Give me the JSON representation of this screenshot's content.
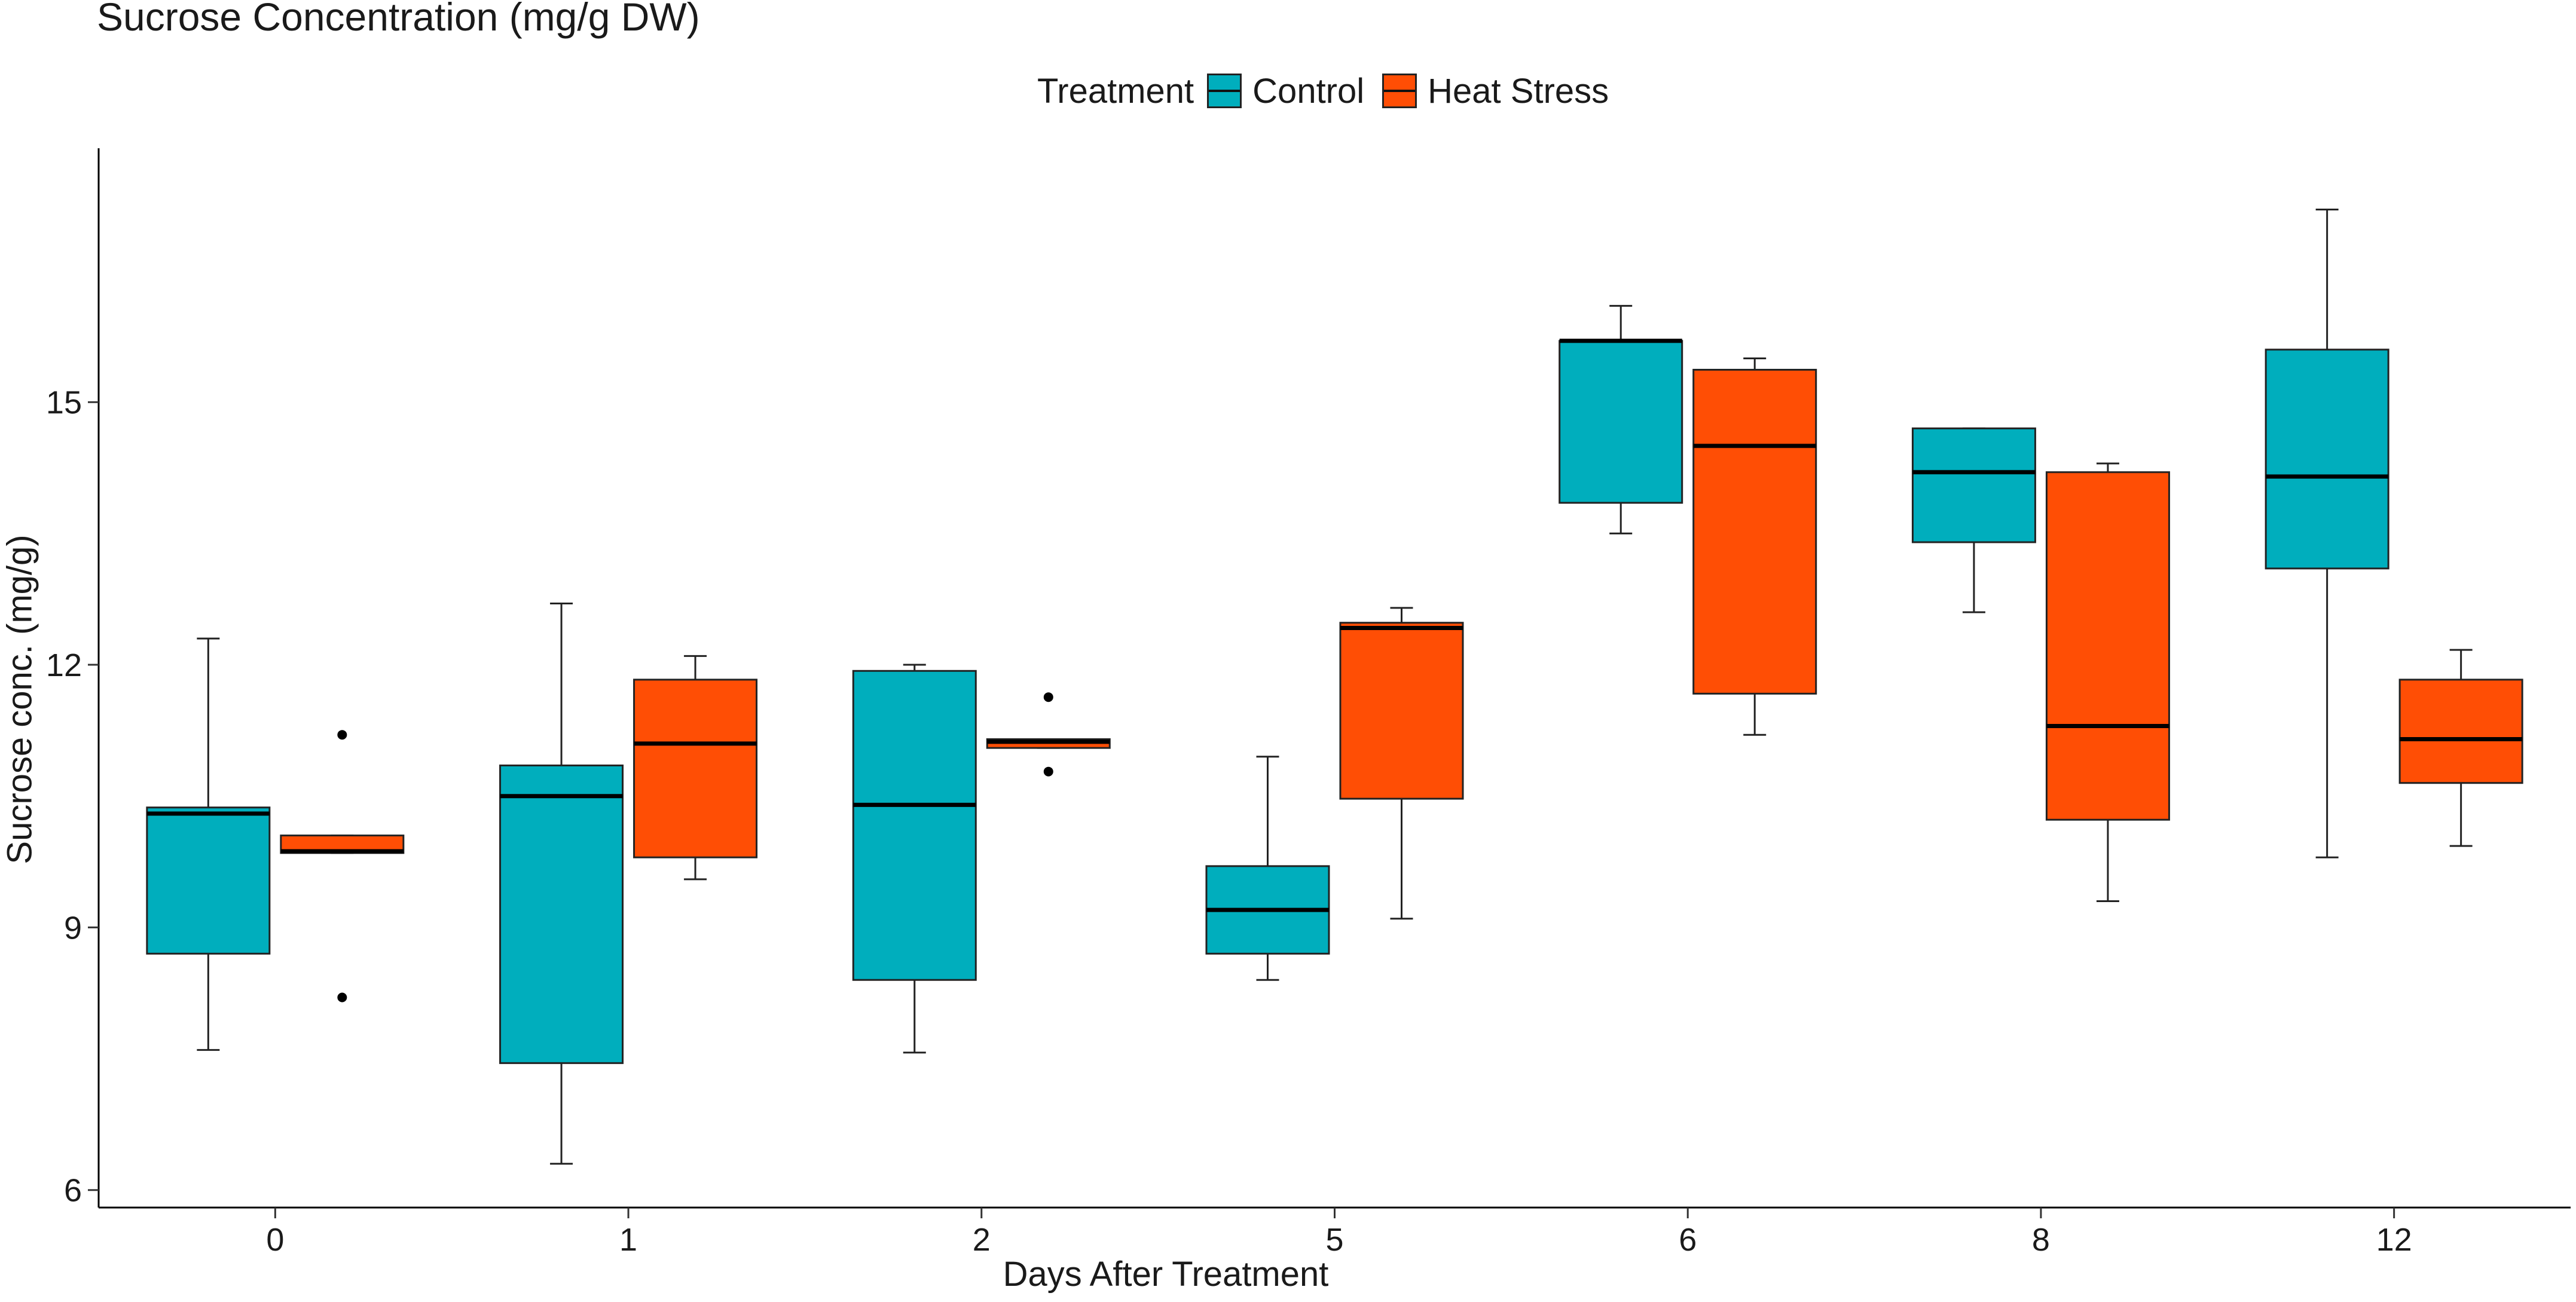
{
  "chart_data": {
    "type": "box",
    "title": "Sucrose Concentration (mg/g DW)",
    "xlabel": "Days After Treatment",
    "ylabel": "Sucrose conc. (mg/g)",
    "categories": [
      "0",
      "1",
      "2",
      "5",
      "6",
      "8",
      "12"
    ],
    "ylim": [
      5.8,
      17.9
    ],
    "yticks": [
      6,
      9,
      12,
      15
    ],
    "ytick_labels": [
      "6",
      "9",
      "12",
      "15"
    ],
    "grid": false,
    "legend": {
      "title": "Treatment",
      "position": "top",
      "entries": [
        {
          "name": "Control",
          "color": "#00AEBD"
        },
        {
          "name": "Heat Stress",
          "color": "#FF4E05"
        }
      ]
    },
    "series": [
      {
        "name": "Control",
        "color": "#00AEBD",
        "boxes": [
          {
            "min": 7.6,
            "q1": 8.7,
            "median": 10.3,
            "q3": 10.37,
            "max": 12.3,
            "outliers": []
          },
          {
            "min": 6.3,
            "q1": 7.45,
            "median": 10.5,
            "q3": 10.85,
            "max": 12.7,
            "outliers": []
          },
          {
            "min": 7.57,
            "q1": 8.4,
            "median": 10.4,
            "q3": 11.93,
            "max": 12.0,
            "outliers": []
          },
          {
            "min": 8.4,
            "q1": 8.7,
            "median": 9.2,
            "q3": 9.7,
            "max": 10.95,
            "outliers": []
          },
          {
            "min": 13.5,
            "q1": 13.85,
            "median": 15.7,
            "q3": 15.7,
            "max": 16.1,
            "outliers": []
          },
          {
            "min": 12.6,
            "q1": 13.4,
            "median": 14.2,
            "q3": 14.7,
            "max": 14.7,
            "outliers": []
          },
          {
            "min": 9.8,
            "q1": 13.1,
            "median": 14.15,
            "q3": 15.6,
            "max": 17.2,
            "outliers": []
          }
        ]
      },
      {
        "name": "Heat Stress",
        "color": "#FF4E05",
        "boxes": [
          {
            "min": 9.85,
            "q1": 9.85,
            "median": 9.87,
            "q3": 10.05,
            "max": 10.05,
            "outliers": [
              11.2,
              8.2
            ]
          },
          {
            "min": 9.55,
            "q1": 9.8,
            "median": 11.1,
            "q3": 11.83,
            "max": 12.1,
            "outliers": []
          },
          {
            "min": 11.05,
            "q1": 11.05,
            "median": 11.12,
            "q3": 11.15,
            "max": 11.15,
            "outliers": [
              11.63,
              10.78
            ]
          },
          {
            "min": 9.1,
            "q1": 10.47,
            "median": 12.42,
            "q3": 12.48,
            "max": 12.65,
            "outliers": []
          },
          {
            "min": 11.2,
            "q1": 11.67,
            "median": 14.5,
            "q3": 15.37,
            "max": 15.5,
            "outliers": []
          },
          {
            "min": 9.3,
            "q1": 10.23,
            "median": 11.3,
            "q3": 14.2,
            "max": 14.3,
            "outliers": []
          },
          {
            "min": 9.93,
            "q1": 10.65,
            "median": 11.15,
            "q3": 11.83,
            "max": 12.17,
            "outliers": []
          }
        ]
      }
    ]
  }
}
